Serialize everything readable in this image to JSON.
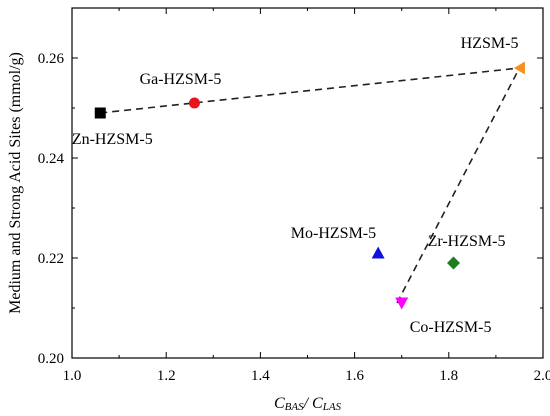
{
  "chart_data": {
    "type": "scatter",
    "xlabel_main": "C",
    "xlabel_sub_a": "BAS",
    "xlabel_sep": "/ C",
    "xlabel_sub_b": "LAS",
    "ylabel": "Medium and Strong Acid Sites (mmol/g)",
    "xlim": [
      1.0,
      2.0
    ],
    "ylim": [
      0.2,
      0.27
    ],
    "xticks": [
      "1.0",
      "1.2",
      "1.4",
      "1.6",
      "1.8",
      "2.0"
    ],
    "yticks": [
      "0.20",
      "0.22",
      "0.24",
      "0.26"
    ],
    "grid": false,
    "points": [
      {
        "name": "Zn-HZSM-5",
        "x": 1.06,
        "y": 0.249,
        "marker": "square",
        "color": "#000000"
      },
      {
        "name": "Ga-HZSM-5",
        "x": 1.26,
        "y": 0.251,
        "marker": "circle",
        "color": "#e8141c"
      },
      {
        "name": "HZSM-5",
        "x": 1.95,
        "y": 0.258,
        "marker": "triangle-left",
        "color": "#f5911e"
      },
      {
        "name": "Mo-HZSM-5",
        "x": 1.65,
        "y": 0.221,
        "marker": "triangle-up",
        "color": "#1010e0"
      },
      {
        "name": "Zr-HZSM-5",
        "x": 1.81,
        "y": 0.219,
        "marker": "diamond",
        "color": "#1e7d1e"
      },
      {
        "name": "Co-HZSM-5",
        "x": 1.7,
        "y": 0.211,
        "marker": "triangle-down",
        "color": "#ff00ff"
      }
    ],
    "lines": [
      {
        "from": [
          1.06,
          0.249
        ],
        "to": [
          1.95,
          0.258
        ],
        "style": "dashed"
      },
      {
        "from": [
          1.69,
          0.211
        ],
        "to": [
          1.95,
          0.258
        ],
        "style": "dashed"
      }
    ]
  }
}
